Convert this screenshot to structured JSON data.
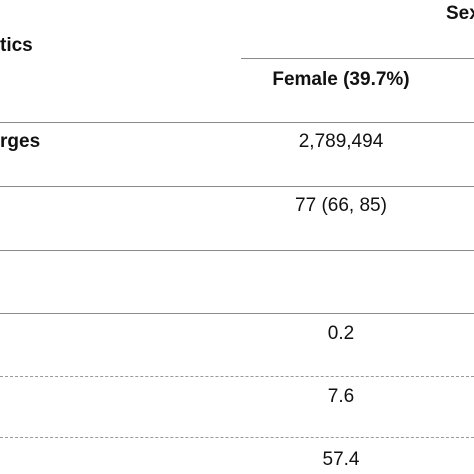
{
  "table": {
    "header": {
      "group_label": "Sex",
      "characteristics_label": "tics",
      "female_label": "Female (39.7%)"
    },
    "rows": [
      {
        "label": "rges",
        "female": "2,789,494"
      },
      {
        "label": "",
        "female": "77 (66, 85)"
      },
      {
        "label": "",
        "female": ""
      },
      {
        "label": "",
        "female": "0.2"
      },
      {
        "label": "",
        "female": "7.6"
      },
      {
        "label": "",
        "female": "57.4"
      }
    ]
  }
}
